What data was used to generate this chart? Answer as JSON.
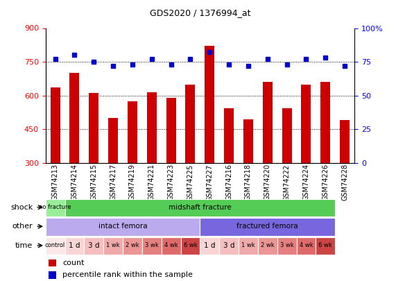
{
  "title": "GDS2020 / 1376994_at",
  "samples": [
    "GSM74213",
    "GSM74214",
    "GSM74215",
    "GSM74217",
    "GSM74219",
    "GSM74221",
    "GSM74223",
    "GSM74225",
    "GSM74227",
    "GSM74216",
    "GSM74218",
    "GSM74220",
    "GSM74222",
    "GSM74224",
    "GSM74226",
    "GSM74228"
  ],
  "bar_values": [
    635,
    700,
    610,
    500,
    575,
    615,
    590,
    650,
    820,
    545,
    495,
    660,
    545,
    650,
    660,
    490
  ],
  "pct_values": [
    77,
    80,
    75,
    72,
    73,
    77,
    73,
    77,
    82,
    73,
    72,
    77,
    73,
    77,
    78,
    72
  ],
  "bar_color": "#cc0000",
  "pct_color": "#0000cc",
  "ylim_left": [
    300,
    900
  ],
  "ylim_right": [
    0,
    100
  ],
  "yticks_left": [
    300,
    450,
    600,
    750,
    900
  ],
  "yticks_right": [
    0,
    25,
    50,
    75,
    100
  ],
  "ytick_right_labels": [
    "0",
    "25",
    "50",
    "75",
    "100%"
  ],
  "grid_values": [
    450,
    600,
    750
  ],
  "shock_row": {
    "label": "shock",
    "regions": [
      {
        "text": "no fracture",
        "start": 0,
        "end": 1,
        "color": "#99ee99"
      },
      {
        "text": "midshaft fracture",
        "start": 1,
        "end": 15,
        "color": "#55cc55"
      }
    ]
  },
  "other_row": {
    "label": "other",
    "regions": [
      {
        "text": "intact femora",
        "start": 0,
        "end": 8,
        "color": "#bbaaee"
      },
      {
        "text": "fractured femora",
        "start": 8,
        "end": 15,
        "color": "#7766dd"
      }
    ]
  },
  "time_row": {
    "label": "time",
    "cells": [
      {
        "text": "control",
        "start": 0,
        "end": 1,
        "color": "#fce8e8"
      },
      {
        "text": "1 d",
        "start": 1,
        "end": 2,
        "color": "#fad5d5"
      },
      {
        "text": "3 d",
        "start": 2,
        "end": 3,
        "color": "#f5bfbf"
      },
      {
        "text": "1 wk",
        "start": 3,
        "end": 4,
        "color": "#f0aaaa"
      },
      {
        "text": "2 wk",
        "start": 4,
        "end": 5,
        "color": "#eb9595"
      },
      {
        "text": "3 wk",
        "start": 5,
        "end": 6,
        "color": "#e68080"
      },
      {
        "text": "4 wk",
        "start": 6,
        "end": 7,
        "color": "#e06a6a"
      },
      {
        "text": "6 wk",
        "start": 7,
        "end": 8,
        "color": "#cc4444"
      },
      {
        "text": "1 d",
        "start": 8,
        "end": 9,
        "color": "#fad5d5"
      },
      {
        "text": "3 d",
        "start": 9,
        "end": 10,
        "color": "#f5bfbf"
      },
      {
        "text": "1 wk",
        "start": 10,
        "end": 11,
        "color": "#f0aaaa"
      },
      {
        "text": "2 wk",
        "start": 11,
        "end": 12,
        "color": "#eb9595"
      },
      {
        "text": "3 wk",
        "start": 12,
        "end": 13,
        "color": "#e68080"
      },
      {
        "text": "4 wk",
        "start": 13,
        "end": 14,
        "color": "#e06a6a"
      },
      {
        "text": "6 wk",
        "start": 14,
        "end": 15,
        "color": "#cc4444"
      }
    ]
  },
  "background_color": "#ffffff"
}
